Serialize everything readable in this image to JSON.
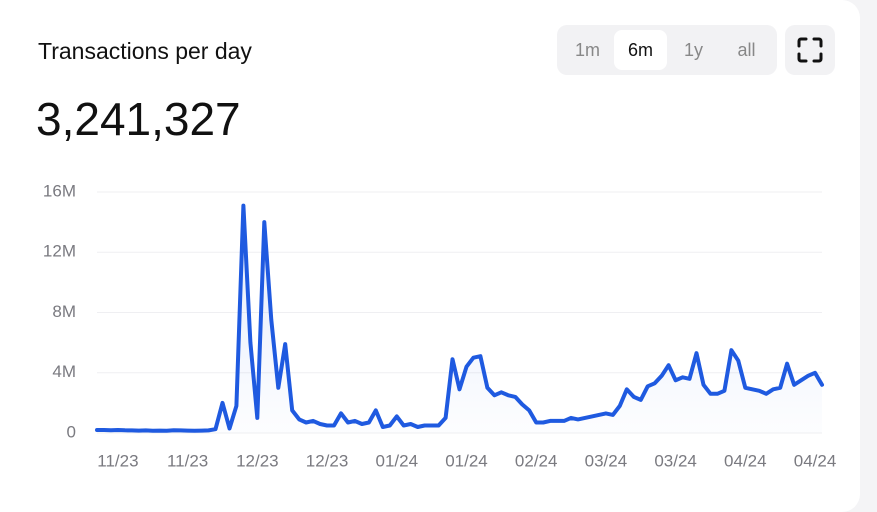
{
  "header": {
    "title": "Transactions per day",
    "total": "3,241,327",
    "ranges": [
      "1m",
      "6m",
      "1y",
      "all"
    ],
    "active_range": 1
  },
  "chart_data": {
    "type": "line",
    "color": "#1f5ae0",
    "grid": true,
    "ylim": [
      0,
      16000000
    ],
    "yticks": [
      {
        "value": 0,
        "label": "0"
      },
      {
        "value": 4000000,
        "label": "4M"
      },
      {
        "value": 8000000,
        "label": "8M"
      },
      {
        "value": 12000000,
        "label": "12M"
      },
      {
        "value": 16000000,
        "label": "16M"
      }
    ],
    "categories": [
      null,
      null,
      null,
      "11/23",
      null,
      null,
      null,
      null,
      null,
      null,
      null,
      null,
      null,
      "11/23",
      null,
      null,
      null,
      null,
      null,
      null,
      null,
      null,
      null,
      "12/23",
      null,
      null,
      null,
      null,
      null,
      null,
      null,
      null,
      null,
      "12/23",
      null,
      null,
      null,
      null,
      null,
      null,
      null,
      null,
      null,
      "01/24",
      null,
      null,
      null,
      null,
      null,
      null,
      null,
      null,
      null,
      "01/24",
      null,
      null,
      null,
      null,
      null,
      null,
      null,
      null,
      null,
      "02/24",
      null,
      null,
      null,
      null,
      null,
      null,
      null,
      null,
      null,
      "03/24",
      null,
      null,
      null,
      null,
      null,
      null,
      null,
      null,
      null,
      "03/24",
      null,
      null,
      null,
      null,
      null,
      null,
      null,
      null,
      null,
      "04/24",
      null,
      null,
      null,
      null,
      null,
      null,
      null,
      null,
      null,
      "04/24",
      null
    ],
    "values": [
      200000,
      200000,
      180000,
      200000,
      180000,
      170000,
      160000,
      170000,
      150000,
      160000,
      150000,
      180000,
      170000,
      160000,
      150000,
      160000,
      170000,
      250000,
      2000000,
      300000,
      1800000,
      15100000,
      6000000,
      1000000,
      14000000,
      7500000,
      3000000,
      5900000,
      1500000,
      900000,
      700000,
      800000,
      600000,
      500000,
      500000,
      1300000,
      700000,
      800000,
      600000,
      700000,
      1500000,
      400000,
      500000,
      1100000,
      500000,
      600000,
      400000,
      500000,
      500000,
      500000,
      1000000,
      4900000,
      2900000,
      4400000,
      5000000,
      5100000,
      3000000,
      2500000,
      2700000,
      2500000,
      2400000,
      1900000,
      1500000,
      700000,
      700000,
      800000,
      800000,
      800000,
      1000000,
      900000,
      1000000,
      1100000,
      1200000,
      1300000,
      1200000,
      1800000,
      2900000,
      2400000,
      2200000,
      3100000,
      3300000,
      3800000,
      4500000,
      3500000,
      3700000,
      3600000,
      5300000,
      3200000,
      2600000,
      2600000,
      2800000,
      5500000,
      4800000,
      3000000,
      2900000,
      2800000,
      2600000,
      2900000,
      3000000,
      4600000,
      3200000,
      3500000,
      3800000,
      4000000,
      3200000
    ]
  }
}
